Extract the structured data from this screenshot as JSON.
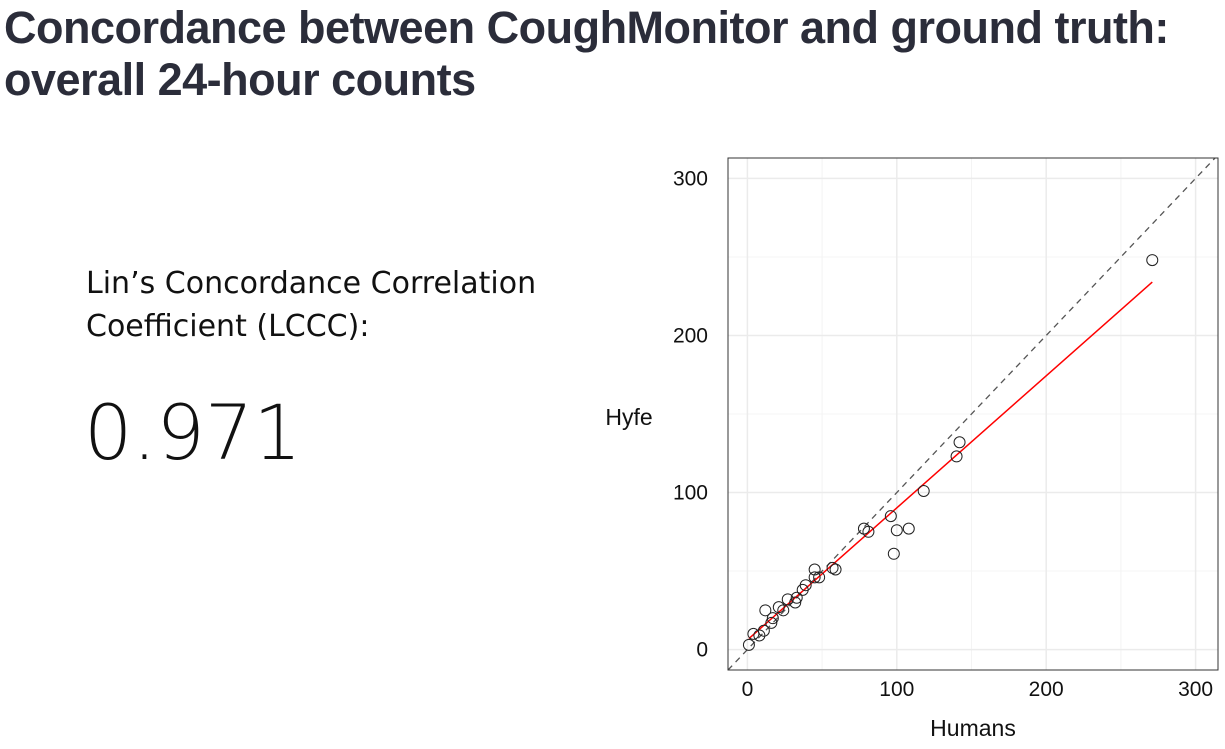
{
  "title": "Concordance between CoughMonitor and ground truth: overall 24-hour counts",
  "metric": {
    "label": "Lin’s Concordance Correlation Coefficient (LCCC):",
    "value": "0.971"
  },
  "chart_data": {
    "type": "scatter",
    "title": "",
    "xlabel": "Humans",
    "ylabel": "Hyfe",
    "xlim": [
      -13,
      315
    ],
    "ylim": [
      -13,
      313
    ],
    "xticks": [
      0,
      100,
      200,
      300
    ],
    "yticks": [
      0,
      100,
      200,
      300
    ],
    "grid": true,
    "points": [
      [
        1,
        3
      ],
      [
        4,
        10
      ],
      [
        8,
        9
      ],
      [
        11,
        12
      ],
      [
        12,
        25
      ],
      [
        16,
        17
      ],
      [
        17,
        20
      ],
      [
        21,
        27
      ],
      [
        24,
        25
      ],
      [
        27,
        32
      ],
      [
        32,
        30
      ],
      [
        33,
        33
      ],
      [
        37,
        38
      ],
      [
        39,
        41
      ],
      [
        45,
        51
      ],
      [
        45,
        46
      ],
      [
        48,
        46
      ],
      [
        57,
        52
      ],
      [
        59,
        51
      ],
      [
        78,
        77
      ],
      [
        81,
        75
      ],
      [
        96,
        85
      ],
      [
        100,
        76
      ],
      [
        98,
        61
      ],
      [
        108,
        77
      ],
      [
        118,
        101
      ],
      [
        140,
        123
      ],
      [
        142,
        132
      ],
      [
        271,
        248
      ]
    ],
    "identity_line": {
      "style": "dashed",
      "color": "#555555"
    },
    "fit_line": {
      "x": [
        1,
        271
      ],
      "y": [
        7,
        234
      ],
      "color": "#ff0000"
    },
    "marker": "open-circle"
  }
}
